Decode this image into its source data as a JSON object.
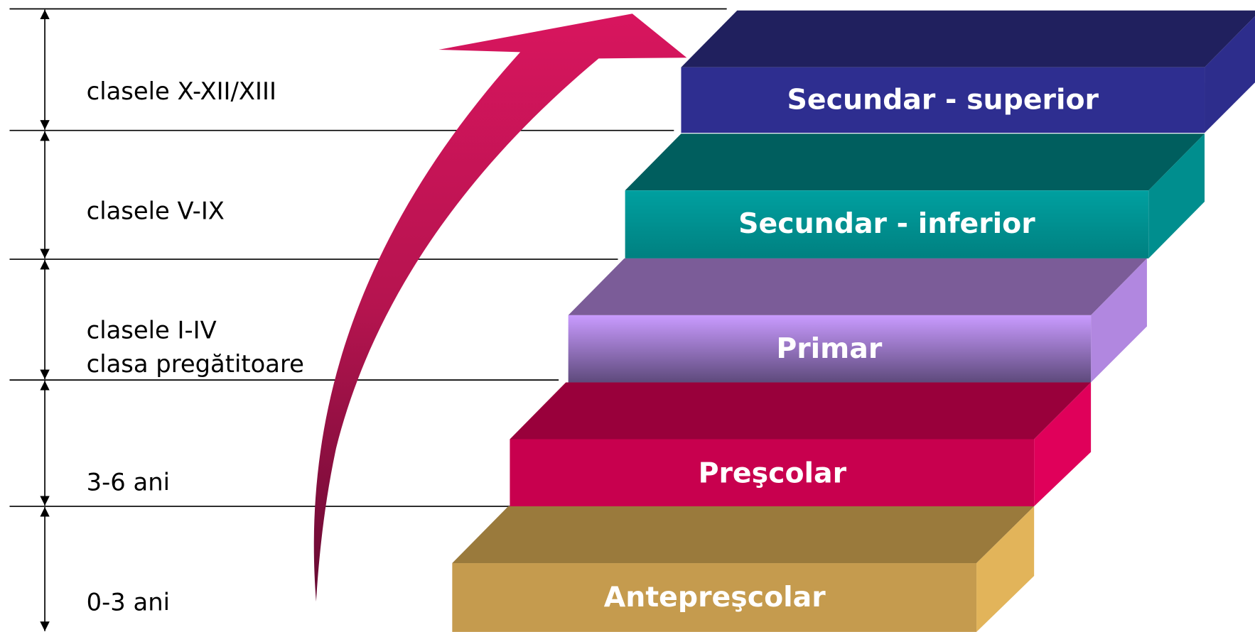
{
  "levels": [
    {
      "name": "Secundar - superior",
      "range": [
        "clasele X-XII/XIII"
      ]
    },
    {
      "name": "Secundar - inferior",
      "range": [
        "clasele V-IX"
      ]
    },
    {
      "name": "Primar",
      "range": [
        "clasele I-IV",
        "clasa pregătitoare"
      ]
    },
    {
      "name": "Preşcolar",
      "range": [
        "3-6 ani"
      ]
    },
    {
      "name": "Antepreşcolar",
      "range": [
        "0-3 ani"
      ]
    }
  ]
}
